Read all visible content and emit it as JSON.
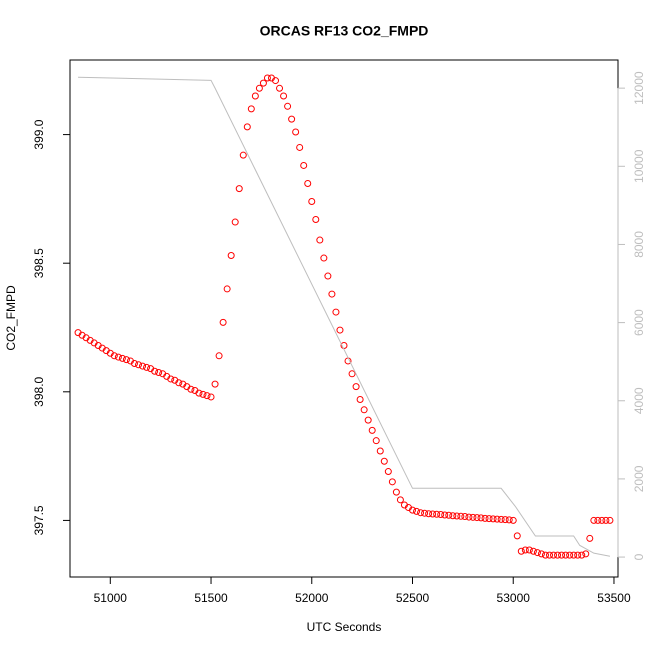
{
  "chart_data": {
    "type": "scatter",
    "title": "ORCAS RF13 CO2_FMPD",
    "x_label": "UTC Seconds",
    "y_label": "CO2_FMPD",
    "xlim": [
      50800,
      53520
    ],
    "ylim": [
      397.28,
      399.29
    ],
    "y2lim": [
      -510,
      12720
    ],
    "xticks": [
      51000,
      51500,
      52000,
      52500,
      53000,
      53500
    ],
    "yticks": [
      397.5,
      {
        "value": 398.0,
        "label": "398.0"
      },
      398.5,
      {
        "value": 399.0,
        "label": "399.0"
      }
    ],
    "y2ticks": [
      0,
      2000,
      4000,
      6000,
      8000,
      10000,
      12000
    ],
    "series": [
      {
        "color": "#ff0000",
        "x": [
          50840,
          50860,
          50880,
          50900,
          50920,
          50940,
          50960,
          50980,
          51000,
          51020,
          51040,
          51060,
          51080,
          51100,
          51120,
          51140,
          51160,
          51180,
          51200,
          51220,
          51240,
          51260,
          51280,
          51300,
          51320,
          51340,
          51360,
          51380,
          51400,
          51420,
          51440,
          51460,
          51480,
          51500,
          51520,
          51540,
          51560,
          51580,
          51600,
          51620,
          51640,
          51660,
          51680,
          51700,
          51720,
          51740,
          51760,
          51780,
          51800,
          51820,
          51840,
          51860,
          51880,
          51900,
          51920,
          51940,
          51960,
          51980,
          52000,
          52020,
          52040,
          52060,
          52080,
          52100,
          52120,
          52140,
          52160,
          52180,
          52200,
          52220,
          52240,
          52260,
          52280,
          52300,
          52320,
          52340,
          52360,
          52380,
          52400,
          52420,
          52440,
          52460,
          52480,
          52500,
          52520,
          52540,
          52560,
          52580,
          52600,
          52620,
          52640,
          52660,
          52680,
          52700,
          52720,
          52740,
          52760,
          52780,
          52800,
          52820,
          52840,
          52860,
          52880,
          52900,
          52920,
          52940,
          52960,
          52980,
          53000,
          53020,
          53040,
          53060,
          53080,
          53100,
          53120,
          53140,
          53160,
          53180,
          53200,
          53220,
          53240,
          53260,
          53280,
          53300,
          53320,
          53340,
          53360,
          53380,
          53400,
          53420,
          53440,
          53460,
          53480
        ],
        "values": [
          398.23,
          398.22,
          398.21,
          398.2,
          398.19,
          398.18,
          398.17,
          398.16,
          398.15,
          398.14,
          398.135,
          398.13,
          398.125,
          398.12,
          398.11,
          398.105,
          398.1,
          398.095,
          398.09,
          398.08,
          398.075,
          398.07,
          398.06,
          398.05,
          398.045,
          398.035,
          398.03,
          398.02,
          398.01,
          398.005,
          397.995,
          397.99,
          397.985,
          397.98,
          398.03,
          398.14,
          398.27,
          398.4,
          398.53,
          398.66,
          398.79,
          398.92,
          399.03,
          399.1,
          399.15,
          399.18,
          399.2,
          399.22,
          399.22,
          399.21,
          399.18,
          399.15,
          399.11,
          399.06,
          399.01,
          398.95,
          398.88,
          398.81,
          398.74,
          398.67,
          398.59,
          398.52,
          398.45,
          398.38,
          398.31,
          398.24,
          398.18,
          398.12,
          398.07,
          398.02,
          397.97,
          397.93,
          397.89,
          397.85,
          397.81,
          397.77,
          397.73,
          397.69,
          397.65,
          397.61,
          397.58,
          397.56,
          397.55,
          397.54,
          397.535,
          397.53,
          397.528,
          397.526,
          397.525,
          397.524,
          397.523,
          397.521,
          397.52,
          397.518,
          397.517,
          397.516,
          397.515,
          397.513,
          397.512,
          397.511,
          397.51,
          397.508,
          397.507,
          397.506,
          397.505,
          397.504,
          397.503,
          397.502,
          397.5,
          397.44,
          397.38,
          397.385,
          397.385,
          397.38,
          397.375,
          397.37,
          397.365,
          397.365,
          397.365,
          397.365,
          397.365,
          397.365,
          397.365,
          397.365,
          397.365,
          397.365,
          397.37,
          397.43,
          397.5,
          397.5,
          397.5,
          397.5,
          397.5
        ]
      },
      {
        "color": "#bebebe",
        "axis": "y2",
        "style": "line",
        "x": [
          50840,
          51500,
          51520,
          52500,
          52940,
          53010,
          53110,
          53300,
          53330,
          53400,
          53480
        ],
        "values": [
          12280,
          12200,
          12000,
          1760,
          1760,
          1300,
          540,
          540,
          300,
          100,
          20
        ]
      }
    ]
  }
}
